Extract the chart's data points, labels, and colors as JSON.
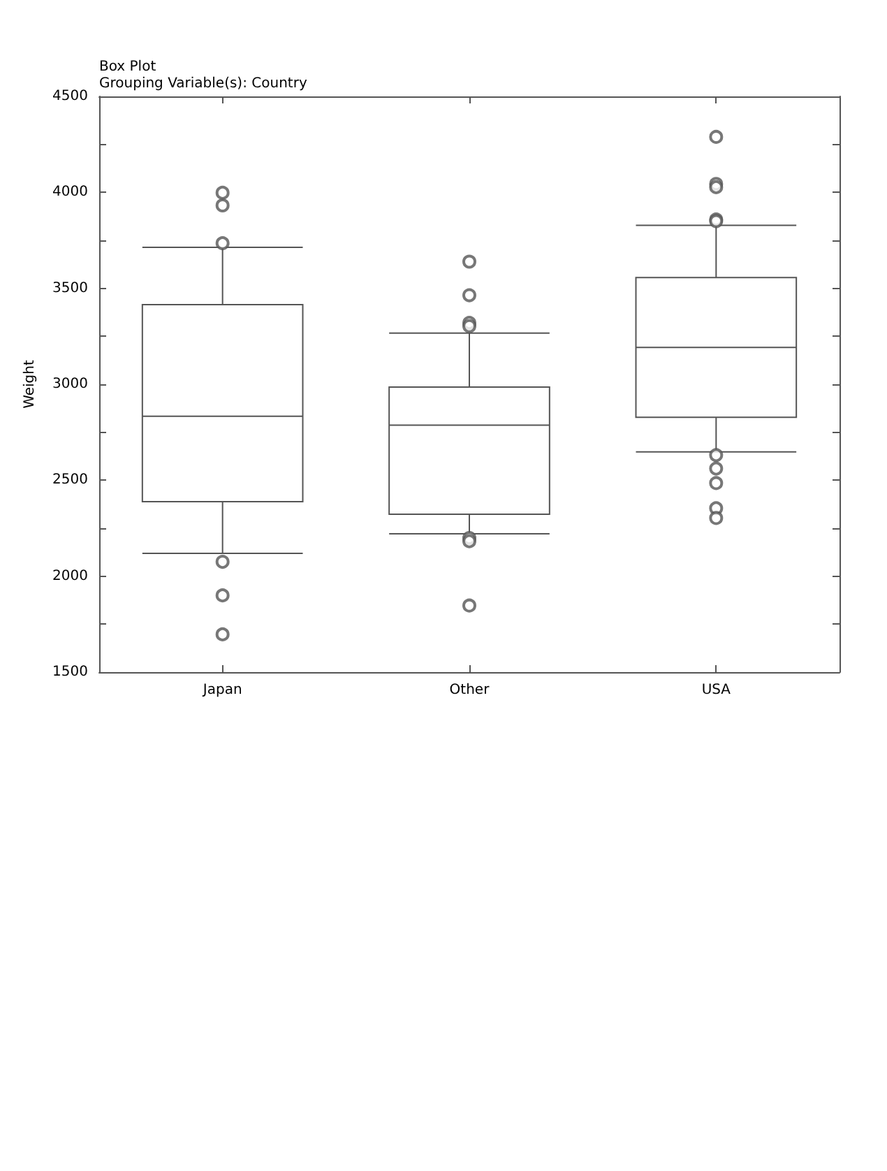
{
  "chart_data": {
    "type": "box",
    "title": "Box Plot",
    "subtitle": "Grouping Variable(s): Country",
    "ylabel": "Weight",
    "categories": [
      "Japan",
      "Other",
      "USA"
    ],
    "boxes": [
      {
        "low": 2119,
        "q1": 2388,
        "median": 2833,
        "q3": 3415,
        "high": 3714,
        "outliers": [
          3998,
          3932,
          3735,
          2075,
          1900,
          1697
        ]
      },
      {
        "low": 2221,
        "q1": 2323,
        "median": 2787,
        "q3": 2985,
        "high": 3267,
        "outliers": [
          3639,
          3464,
          3320,
          3303,
          2199,
          2182,
          1847
        ]
      },
      {
        "low": 2648,
        "q1": 2828,
        "median": 3192,
        "q3": 3556,
        "high": 3828,
        "outliers": [
          4289,
          4044,
          4027,
          3859,
          3850,
          2631,
          2561,
          2485,
          2354,
          2303
        ]
      }
    ],
    "color": "#555555",
    "marker": "circle",
    "grid": false,
    "ylim": [
      1500,
      4500
    ],
    "yticks": [
      1500,
      2000,
      2500,
      3000,
      3500,
      4000,
      4500
    ]
  }
}
